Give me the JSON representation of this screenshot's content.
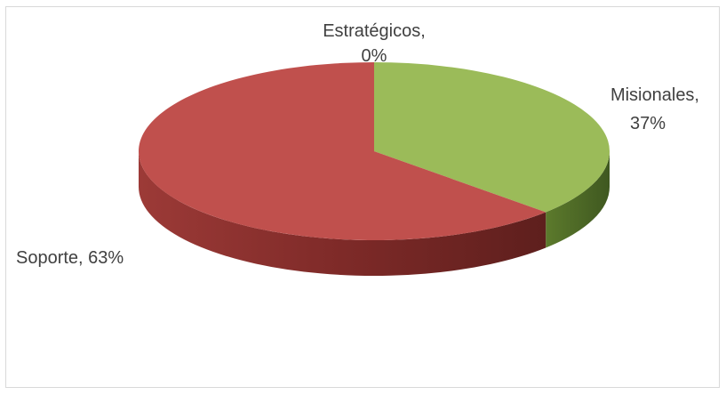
{
  "chart_data": {
    "type": "pie",
    "title": "",
    "three_d": true,
    "legend": "none",
    "slices": [
      {
        "name": "Estratégicos",
        "value": 0,
        "label_line1": "Estratégicos,",
        "label_line2": "0%",
        "color": "#4f81bd"
      },
      {
        "name": "Misionales",
        "value": 37,
        "label_line1": "Misionales,",
        "label_line2": "37%",
        "color": "#9bbb59"
      },
      {
        "name": "Soporte",
        "value": 63,
        "label_line1": "Soporte, 63%",
        "label_line2": "",
        "color": "#c0504d"
      }
    ]
  }
}
